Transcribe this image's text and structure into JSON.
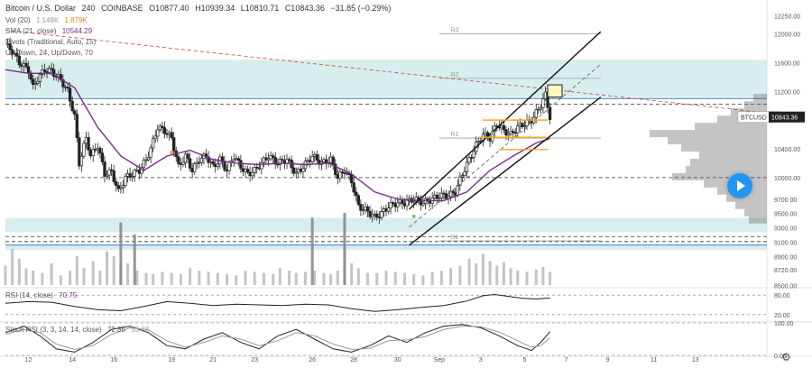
{
  "header": {
    "symbol": "Bitcoin / U.S. Dollar",
    "timeframe": "240",
    "exchange": "COINBASE",
    "open": "O10877.40",
    "high": "H10939.34",
    "low": "L10810.71",
    "close": "C10843.36",
    "change": "−31.85 (−0.29%)"
  },
  "indicators": {
    "vol": {
      "label": "Vol (20)",
      "v1": "1.148K",
      "v2": "1.879K"
    },
    "sma": {
      "label": "SMA (21, close)",
      "value": "10544.29"
    },
    "pivots": {
      "label": "Pivots (Traditional, Auto, 15)"
    },
    "updown": {
      "label": "Up Down, 24, Up/Down, 70"
    },
    "rsi": {
      "label": "RSI (14, close)",
      "value": "70.75"
    },
    "stoch": {
      "label": "Stoch RSI (3, 3, 14, 14, close)",
      "k": "72.85",
      "d": "53.68"
    }
  },
  "pivot_labels": [
    "R3",
    "R2",
    "R1",
    "S1"
  ],
  "price_tag": {
    "symbol": "BTCUSD",
    "price": "10843.36"
  },
  "icons": {
    "play": "play-icon",
    "settings": "settings-icon"
  },
  "colors": {
    "candle": "#222222",
    "sma": "#7b2d8e",
    "zone": "#4fb3b3",
    "channel": "#111111",
    "orange": "#f5a623",
    "resistance_line": "#d43f3f",
    "support_blue": "#2a7bbf",
    "volume_bar": "#b5b5b5",
    "volume_profile": "#555555"
  },
  "chart_data": {
    "type": "candlestick",
    "title": "Bitcoin / U.S. Dollar, 240, COINBASE",
    "price_axis_ticks": [
      12250,
      12000,
      11600,
      11200,
      10800,
      10400,
      10000,
      9700,
      9500,
      9300,
      9100,
      8900,
      8720,
      8500
    ],
    "x_tick_labels": [
      "12",
      "14",
      "16",
      "19",
      "21",
      "23",
      "26",
      "28",
      "30",
      "Sep",
      "3",
      "5",
      "7",
      "9",
      "11",
      "13"
    ],
    "x_tick_index": [
      10,
      29,
      47,
      72,
      90,
      108,
      133,
      151,
      170,
      188,
      206,
      225,
      243,
      261,
      281,
      299
    ],
    "ylim": [
      8480,
      12320
    ],
    "price_path": [
      [
        0,
        11850
      ],
      [
        3,
        11760
      ],
      [
        6,
        11600
      ],
      [
        10,
        11500
      ],
      [
        12,
        11250
      ],
      [
        14,
        11380
      ],
      [
        17,
        11500
      ],
      [
        20,
        11480
      ],
      [
        24,
        11360
      ],
      [
        27,
        11200
      ],
      [
        30,
        10850
      ],
      [
        32,
        10200
      ],
      [
        35,
        10550
      ],
      [
        37,
        10300
      ],
      [
        40,
        10450
      ],
      [
        43,
        10050
      ],
      [
        46,
        10080
      ],
      [
        49,
        9800
      ],
      [
        52,
        10000
      ],
      [
        55,
        10050
      ],
      [
        58,
        10100
      ],
      [
        61,
        10250
      ],
      [
        63,
        10400
      ],
      [
        66,
        10700
      ],
      [
        69,
        10650
      ],
      [
        72,
        10550
      ],
      [
        75,
        10150
      ],
      [
        78,
        10300
      ],
      [
        81,
        10100
      ],
      [
        84,
        10250
      ],
      [
        87,
        10300
      ],
      [
        90,
        10150
      ],
      [
        93,
        10250
      ],
      [
        96,
        10100
      ],
      [
        99,
        10300
      ],
      [
        102,
        10150
      ],
      [
        105,
        10050
      ],
      [
        108,
        10100
      ],
      [
        111,
        10200
      ],
      [
        114,
        10300
      ],
      [
        118,
        10200
      ],
      [
        122,
        10250
      ],
      [
        126,
        10050
      ],
      [
        129,
        10150
      ],
      [
        133,
        10300
      ],
      [
        137,
        10200
      ],
      [
        141,
        10250
      ],
      [
        144,
        10000
      ],
      [
        147,
        10100
      ],
      [
        150,
        9950
      ],
      [
        153,
        9600
      ],
      [
        156,
        9550
      ],
      [
        160,
        9450
      ],
      [
        163,
        9500
      ],
      [
        166,
        9600
      ],
      [
        170,
        9650
      ],
      [
        173,
        9650
      ],
      [
        177,
        9700
      ],
      [
        181,
        9650
      ],
      [
        185,
        9700
      ],
      [
        188,
        9750
      ],
      [
        192,
        9750
      ],
      [
        195,
        9800
      ],
      [
        198,
        10050
      ],
      [
        201,
        10250
      ],
      [
        204,
        10450
      ],
      [
        207,
        10600
      ],
      [
        210,
        10550
      ],
      [
        213,
        10750
      ],
      [
        216,
        10650
      ],
      [
        219,
        10600
      ],
      [
        222,
        10700
      ],
      [
        225,
        10750
      ],
      [
        228,
        10800
      ],
      [
        231,
        10950
      ],
      [
        234,
        11150
      ],
      [
        236,
        10843
      ]
    ],
    "sma": [
      [
        0,
        11500
      ],
      [
        10,
        11450
      ],
      [
        20,
        11450
      ],
      [
        30,
        11250
      ],
      [
        40,
        10700
      ],
      [
        50,
        10300
      ],
      [
        60,
        10100
      ],
      [
        70,
        10300
      ],
      [
        80,
        10380
      ],
      [
        90,
        10250
      ],
      [
        100,
        10200
      ],
      [
        110,
        10180
      ],
      [
        120,
        10200
      ],
      [
        130,
        10180
      ],
      [
        140,
        10200
      ],
      [
        150,
        10050
      ],
      [
        160,
        9800
      ],
      [
        170,
        9700
      ],
      [
        180,
        9680
      ],
      [
        190,
        9680
      ],
      [
        200,
        9800
      ],
      [
        210,
        10100
      ],
      [
        220,
        10300
      ],
      [
        230,
        10480
      ],
      [
        236,
        10544
      ]
    ],
    "pivots": {
      "R3": 12000,
      "R2": 11380,
      "R1": 10550,
      "S1": 9120
    },
    "zones": [
      [
        11120,
        11640
      ],
      [
        9240,
        9440
      ],
      [
        8990,
        9050
      ]
    ],
    "horizontal_lines": [
      11100,
      11020,
      10000,
      9180,
      9110,
      9060
    ],
    "channel": {
      "upper": [
        [
          175,
          9560
        ],
        [
          258,
          12030
        ]
      ],
      "lower": [
        [
          175,
          9060
        ],
        [
          258,
          11120
        ]
      ],
      "mid": [
        [
          175,
          9310
        ],
        [
          258,
          11575
        ]
      ]
    },
    "orange_levels": [
      {
        "from": 207,
        "to": 235,
        "value": 10800
      },
      {
        "from": 205,
        "to": 235,
        "value": 10560
      },
      {
        "from": 214,
        "to": 235,
        "value": 10390
      }
    ],
    "resistance_line": [
      [
        0,
        12050
      ],
      [
        330,
        10900
      ]
    ],
    "volume": [
      [
        0,
        80
      ],
      [
        3,
        150
      ],
      [
        6,
        110
      ],
      [
        9,
        70
      ],
      [
        12,
        60
      ],
      [
        16,
        50
      ],
      [
        20,
        90
      ],
      [
        24,
        40
      ],
      [
        28,
        60
      ],
      [
        31,
        120
      ],
      [
        34,
        70
      ],
      [
        38,
        100
      ],
      [
        41,
        60
      ],
      [
        44,
        140
      ],
      [
        47,
        120
      ],
      [
        50,
        80
      ],
      [
        53,
        90
      ],
      [
        57,
        60
      ],
      [
        61,
        50
      ],
      [
        64,
        45
      ],
      [
        68,
        55
      ],
      [
        72,
        50
      ],
      [
        76,
        45
      ],
      [
        80,
        70
      ],
      [
        84,
        60
      ],
      [
        88,
        55
      ],
      [
        92,
        50
      ],
      [
        96,
        45
      ],
      [
        100,
        40
      ],
      [
        104,
        60
      ],
      [
        108,
        55
      ],
      [
        112,
        50
      ],
      [
        116,
        45
      ],
      [
        119,
        70
      ],
      [
        123,
        60
      ],
      [
        126,
        50
      ],
      [
        130,
        55
      ],
      [
        134,
        60
      ],
      [
        138,
        50
      ],
      [
        141,
        45
      ],
      [
        144,
        60
      ],
      [
        147,
        160
      ],
      [
        150,
        90
      ],
      [
        153,
        70
      ],
      [
        157,
        50
      ],
      [
        161,
        50
      ],
      [
        165,
        60
      ],
      [
        169,
        55
      ],
      [
        173,
        50
      ],
      [
        177,
        45
      ],
      [
        181,
        40
      ],
      [
        185,
        55
      ],
      [
        189,
        60
      ],
      [
        193,
        70
      ],
      [
        197,
        80
      ],
      [
        201,
        110
      ],
      [
        204,
        90
      ],
      [
        207,
        130
      ],
      [
        210,
        100
      ],
      [
        213,
        80
      ],
      [
        216,
        95
      ],
      [
        219,
        70
      ],
      [
        222,
        60
      ],
      [
        226,
        55
      ],
      [
        230,
        65
      ],
      [
        233,
        75
      ],
      [
        236,
        55
      ]
    ],
    "volume_spikes": [
      [
        50,
        260
      ],
      [
        56,
        210
      ],
      [
        133,
        280
      ],
      [
        147,
        300
      ]
    ],
    "volume_profile": [
      [
        11100,
        15
      ],
      [
        11000,
        25
      ],
      [
        10900,
        40
      ],
      [
        10800,
        55
      ],
      [
        10700,
        80
      ],
      [
        10600,
        130
      ],
      [
        10500,
        110
      ],
      [
        10400,
        95
      ],
      [
        10300,
        75
      ],
      [
        10200,
        85
      ],
      [
        10100,
        90
      ],
      [
        10000,
        105
      ],
      [
        9900,
        70
      ],
      [
        9800,
        55
      ],
      [
        9700,
        45
      ],
      [
        9600,
        35
      ],
      [
        9500,
        25
      ],
      [
        9400,
        20
      ]
    ],
    "rsi": {
      "ticks": [
        80,
        20
      ],
      "values": [
        [
          0,
          55
        ],
        [
          10,
          60
        ],
        [
          20,
          58
        ],
        [
          30,
          45
        ],
        [
          40,
          35
        ],
        [
          50,
          32
        ],
        [
          60,
          45
        ],
        [
          70,
          60
        ],
        [
          80,
          55
        ],
        [
          90,
          48
        ],
        [
          100,
          52
        ],
        [
          110,
          50
        ],
        [
          120,
          48
        ],
        [
          130,
          52
        ],
        [
          140,
          50
        ],
        [
          150,
          38
        ],
        [
          160,
          30
        ],
        [
          170,
          35
        ],
        [
          180,
          42
        ],
        [
          190,
          48
        ],
        [
          200,
          62
        ],
        [
          207,
          78
        ],
        [
          212,
          82
        ],
        [
          218,
          76
        ],
        [
          224,
          70
        ],
        [
          230,
          68
        ],
        [
          236,
          71
        ]
      ]
    },
    "stoch": {
      "ticks": [
        100,
        0
      ],
      "k": [
        [
          0,
          70
        ],
        [
          8,
          90
        ],
        [
          15,
          60
        ],
        [
          22,
          20
        ],
        [
          30,
          10
        ],
        [
          38,
          40
        ],
        [
          46,
          80
        ],
        [
          54,
          90
        ],
        [
          62,
          70
        ],
        [
          70,
          30
        ],
        [
          78,
          20
        ],
        [
          86,
          50
        ],
        [
          94,
          70
        ],
        [
          102,
          40
        ],
        [
          110,
          20
        ],
        [
          118,
          60
        ],
        [
          126,
          80
        ],
        [
          134,
          50
        ],
        [
          142,
          20
        ],
        [
          150,
          10
        ],
        [
          158,
          30
        ],
        [
          166,
          60
        ],
        [
          174,
          40
        ],
        [
          182,
          70
        ],
        [
          190,
          90
        ],
        [
          198,
          95
        ],
        [
          206,
          85
        ],
        [
          214,
          60
        ],
        [
          222,
          30
        ],
        [
          228,
          15
        ],
        [
          232,
          40
        ],
        [
          236,
          73
        ]
      ],
      "d": [
        [
          0,
          65
        ],
        [
          8,
          80
        ],
        [
          15,
          70
        ],
        [
          22,
          35
        ],
        [
          30,
          18
        ],
        [
          38,
          30
        ],
        [
          46,
          65
        ],
        [
          54,
          85
        ],
        [
          62,
          78
        ],
        [
          70,
          45
        ],
        [
          78,
          25
        ],
        [
          86,
          40
        ],
        [
          94,
          60
        ],
        [
          102,
          50
        ],
        [
          110,
          30
        ],
        [
          118,
          45
        ],
        [
          126,
          70
        ],
        [
          134,
          60
        ],
        [
          142,
          35
        ],
        [
          150,
          18
        ],
        [
          158,
          22
        ],
        [
          166,
          45
        ],
        [
          174,
          48
        ],
        [
          182,
          58
        ],
        [
          190,
          80
        ],
        [
          198,
          90
        ],
        [
          206,
          88
        ],
        [
          214,
          72
        ],
        [
          222,
          45
        ],
        [
          228,
          25
        ],
        [
          232,
          30
        ],
        [
          236,
          54
        ]
      ]
    }
  }
}
